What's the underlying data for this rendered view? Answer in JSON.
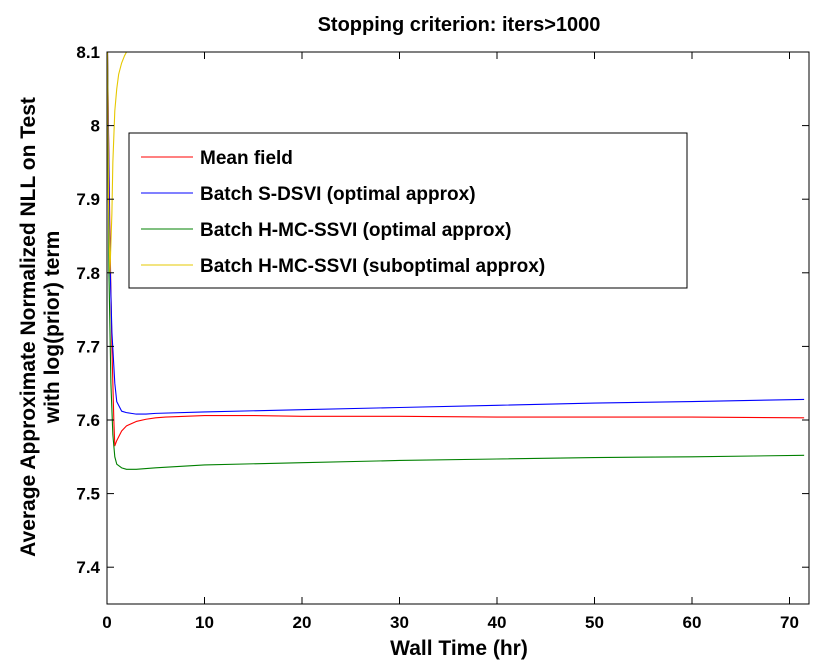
{
  "chart_data": {
    "type": "line",
    "title": "Stopping criterion: iters>1000",
    "xlabel": "Wall Time (hr)",
    "ylabel_line1": "Average Approximate Normalized NLL on Test",
    "ylabel_line2": "with log(prior) term",
    "xlim": [
      0,
      72
    ],
    "ylim": [
      7.35,
      8.1
    ],
    "xticks": [
      0,
      10,
      20,
      30,
      40,
      50,
      60,
      70
    ],
    "xtick_labels": [
      "0",
      "10",
      "20",
      "30",
      "40",
      "50",
      "60",
      "70"
    ],
    "yticks": [
      7.4,
      7.5,
      7.6,
      7.7,
      7.8,
      7.9,
      8.0,
      8.1
    ],
    "ytick_labels": [
      "7.4",
      "7.5",
      "7.6",
      "7.7",
      "7.8",
      "7.9",
      "8",
      "8.1"
    ],
    "legend_position": "upper-left",
    "series": [
      {
        "name": "Mean field",
        "color": "#ff0000",
        "x": [
          0.05,
          0.3,
          0.5,
          0.7,
          0.8,
          1,
          1.5,
          2,
          3,
          4,
          5,
          6,
          8,
          10,
          15,
          20,
          30,
          40,
          50,
          60,
          71.5
        ],
        "y": [
          8.1,
          7.85,
          7.7,
          7.6,
          7.565,
          7.572,
          7.585,
          7.592,
          7.598,
          7.601,
          7.603,
          7.604,
          7.605,
          7.606,
          7.606,
          7.605,
          7.605,
          7.604,
          7.604,
          7.604,
          7.603
        ]
      },
      {
        "name": "Batch S-DSVI (optimal approx)",
        "color": "#0000ff",
        "x": [
          0.05,
          0.3,
          0.5,
          0.8,
          1,
          1.5,
          2,
          2.5,
          3,
          4,
          5,
          10,
          20,
          30,
          40,
          50,
          60,
          71.5
        ],
        "y": [
          8.1,
          7.82,
          7.72,
          7.65,
          7.625,
          7.612,
          7.61,
          7.609,
          7.608,
          7.608,
          7.609,
          7.611,
          7.614,
          7.617,
          7.62,
          7.623,
          7.625,
          7.628
        ]
      },
      {
        "name": "Batch H-MC-SSVI (optimal approx)",
        "color": "#008000",
        "x": [
          0.05,
          0.2,
          0.4,
          0.6,
          0.8,
          1,
          1.5,
          2,
          3,
          4,
          5,
          10,
          20,
          30,
          40,
          50,
          60,
          71.5
        ],
        "y": [
          8.1,
          7.8,
          7.65,
          7.58,
          7.55,
          7.54,
          7.535,
          7.533,
          7.533,
          7.534,
          7.535,
          7.539,
          7.542,
          7.545,
          7.547,
          7.549,
          7.55,
          7.552
        ]
      },
      {
        "name": "Batch H-MC-SSVI (suboptimal approx)",
        "color": "#e6c800",
        "x": [
          0.05,
          0.15,
          0.3,
          0.5,
          0.6,
          0.8,
          1,
          1.2,
          1.5,
          1.8,
          2
        ],
        "y": [
          8.1,
          7.9,
          7.8,
          7.88,
          7.95,
          8.02,
          8.05,
          8.07,
          8.085,
          8.095,
          8.1
        ]
      }
    ]
  }
}
